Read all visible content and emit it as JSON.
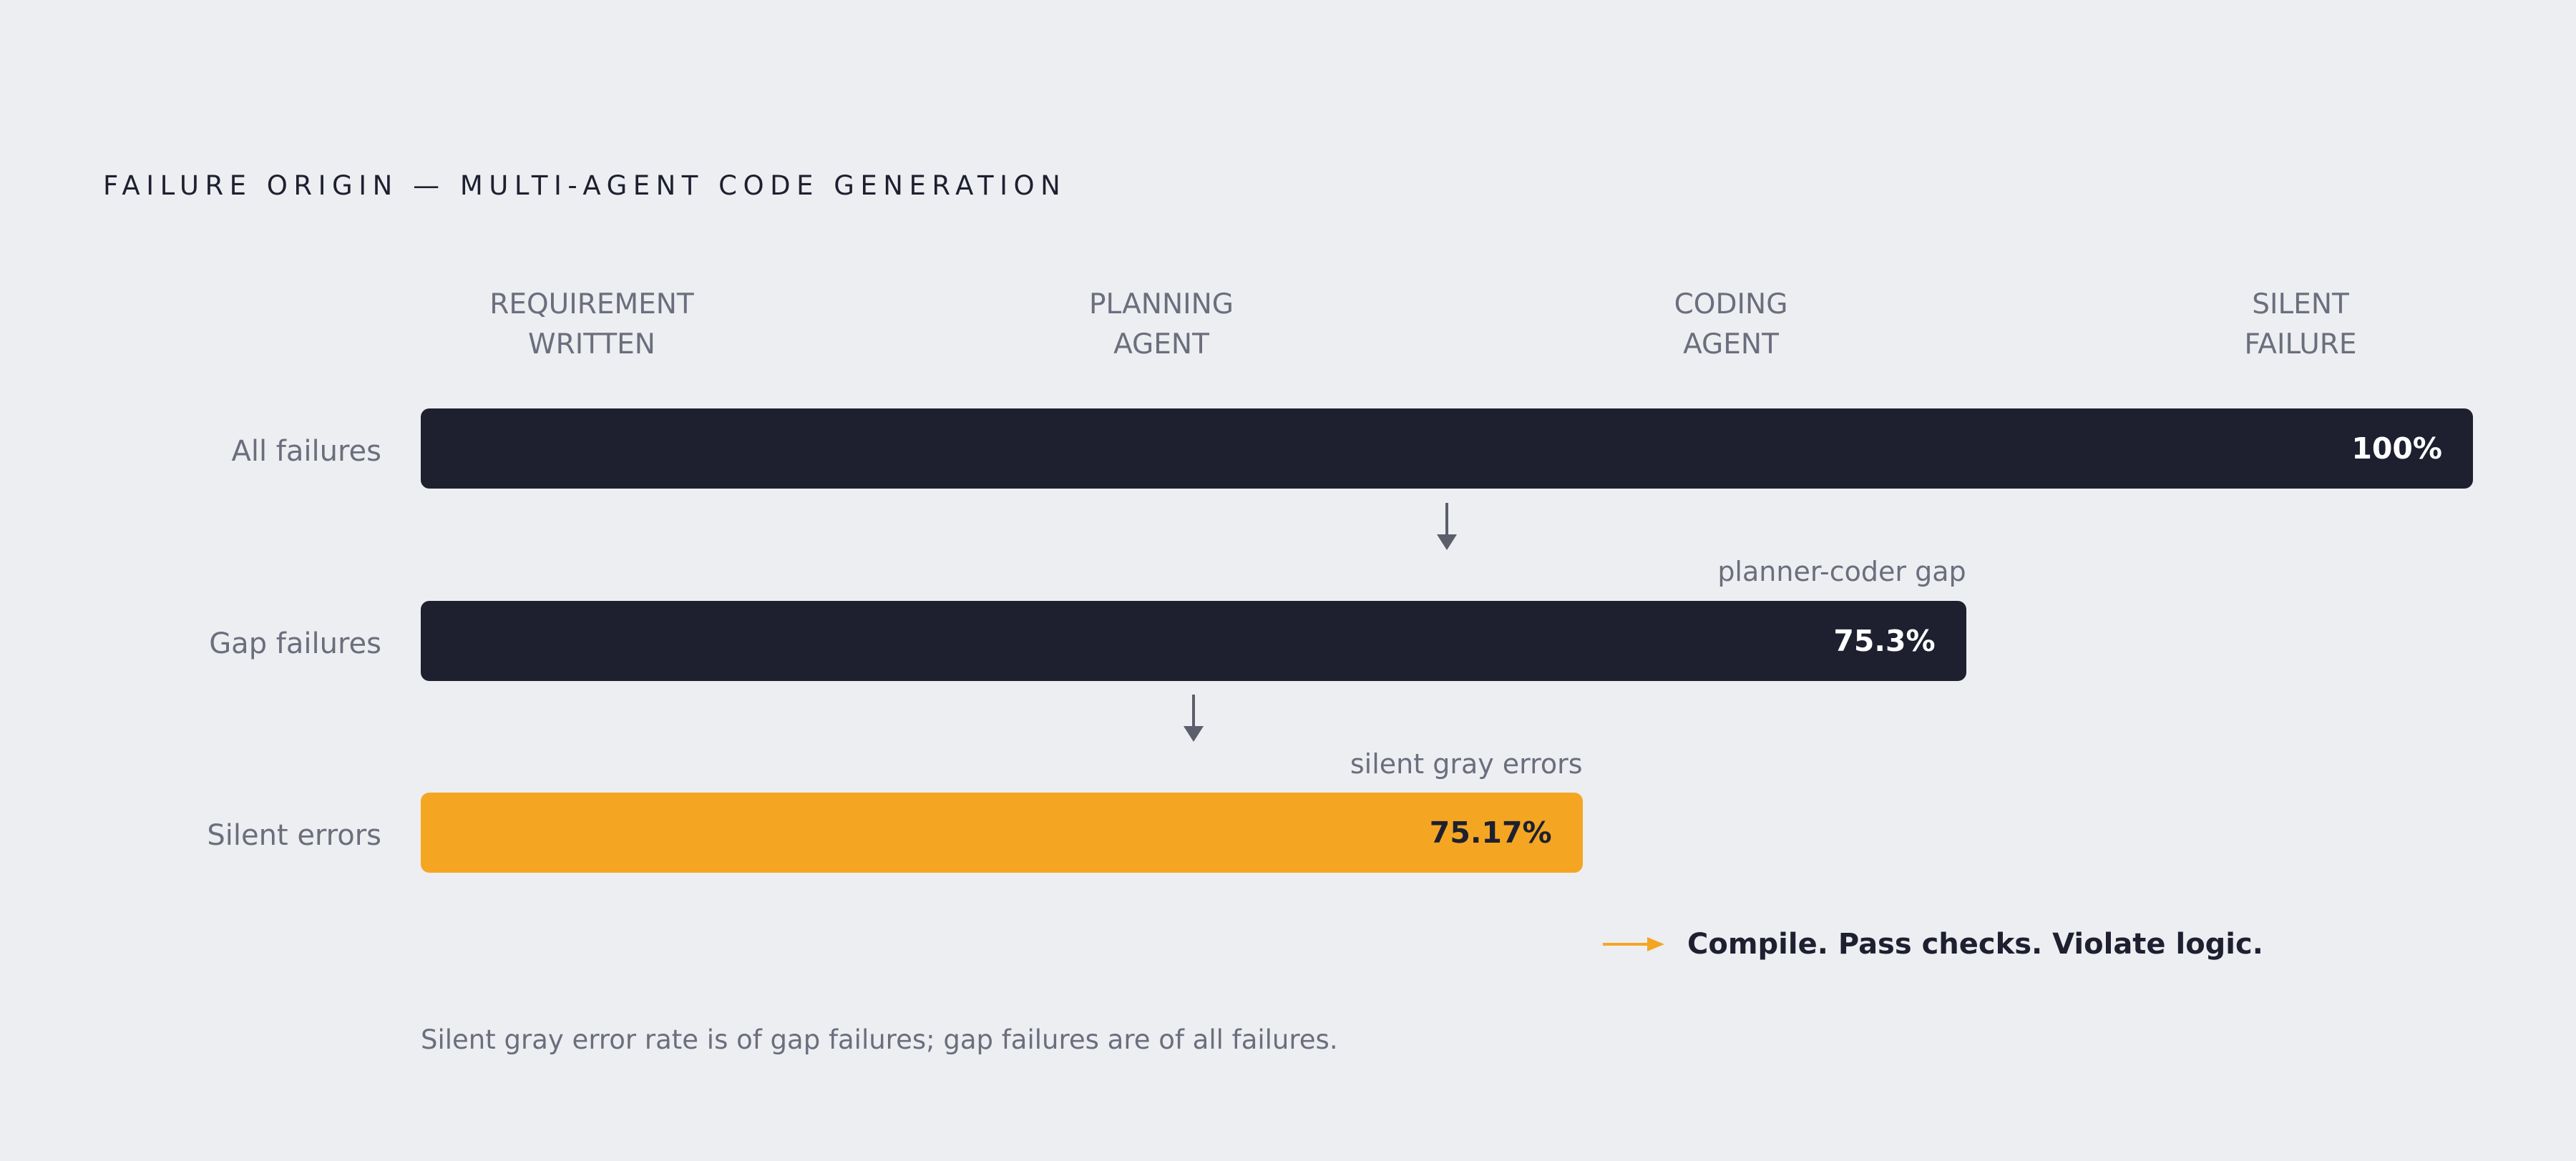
{
  "chart_data": {
    "type": "bar",
    "orientation": "horizontal",
    "title": "FAILURE ORIGIN — MULTI-AGENT CODE GENERATION",
    "stages": [
      [
        "REQUIREMENT",
        "WRITTEN"
      ],
      [
        "PLANNING",
        "AGENT"
      ],
      [
        "CODING",
        "AGENT"
      ],
      [
        "SILENT",
        "FAILURE"
      ]
    ],
    "categories": [
      "All failures",
      "Gap failures",
      "Silent errors"
    ],
    "values": [
      100,
      75.3,
      75.17
    ],
    "value_labels": [
      "100%",
      "75.3%",
      "75.17%"
    ],
    "annotations": [
      "",
      "planner-coder gap",
      "silent gray errors"
    ],
    "bar_colors": [
      "#1e2030",
      "#1e2030",
      "#f4a623"
    ],
    "label_colors": [
      "#ffffff",
      "#ffffff",
      "#1e2030"
    ],
    "callout": "Compile. Pass checks. Violate logic.",
    "footnote": "Silent gray error rate is of gap failures; gap failures are of all failures.",
    "accent_color": "#f4a623"
  }
}
